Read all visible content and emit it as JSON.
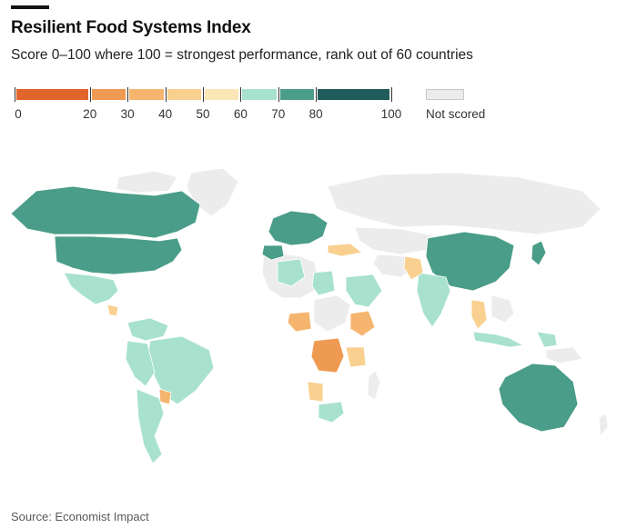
{
  "title": "Resilient Food Systems Index",
  "subtitle": "Score 0–100 where 100 = strongest performance, rank out of 60 countries",
  "source": "Source: Economist Impact",
  "legend": {
    "labels": [
      "0",
      "20",
      "30",
      "40",
      "50",
      "60",
      "70",
      "80",
      "100"
    ],
    "not_scored_label": "Not scored",
    "bins": [
      {
        "range": "0–20",
        "color": "#e0642b"
      },
      {
        "range": "20–30",
        "color": "#ef9a52"
      },
      {
        "range": "30–40",
        "color": "#f5b56e"
      },
      {
        "range": "40–50",
        "color": "#f9d08f"
      },
      {
        "range": "50–60",
        "color": "#fbe6b5"
      },
      {
        "range": "60–70",
        "color": "#a8e2ce"
      },
      {
        "range": "70–80",
        "color": "#4a9d88"
      },
      {
        "range": "80–100",
        "color": "#1f5c5a"
      }
    ],
    "not_scored_color": "#ececec"
  },
  "map": {
    "regions": [
      {
        "id": "canada",
        "bin": "70–80"
      },
      {
        "id": "usa",
        "bin": "70–80"
      },
      {
        "id": "mexico",
        "bin": "60–70"
      },
      {
        "id": "central-america",
        "bin": "40–50"
      },
      {
        "id": "venezuela",
        "bin": "60–70"
      },
      {
        "id": "colombia",
        "bin": "60–70"
      },
      {
        "id": "brazil",
        "bin": "60–70"
      },
      {
        "id": "peru",
        "bin": "60–70"
      },
      {
        "id": "bolivia",
        "bin": "60–70"
      },
      {
        "id": "paraguay",
        "bin": "30–40"
      },
      {
        "id": "argentina",
        "bin": "60–70"
      },
      {
        "id": "chile",
        "bin": "60–70"
      },
      {
        "id": "western-europe",
        "bin": "70–80"
      },
      {
        "id": "spain",
        "bin": "70–80"
      },
      {
        "id": "turkey",
        "bin": "40–50"
      },
      {
        "id": "algeria",
        "bin": "60–70"
      },
      {
        "id": "egypt",
        "bin": "60–70"
      },
      {
        "id": "saudi-arabia",
        "bin": "60–70"
      },
      {
        "id": "pakistan",
        "bin": "40–50"
      },
      {
        "id": "india",
        "bin": "60–70"
      },
      {
        "id": "china",
        "bin": "70–80"
      },
      {
        "id": "japan",
        "bin": "70–80"
      },
      {
        "id": "nigeria",
        "bin": "30–40"
      },
      {
        "id": "ethiopia",
        "bin": "30–40"
      },
      {
        "id": "dr-congo",
        "bin": "20–30"
      },
      {
        "id": "tanzania",
        "bin": "40–50"
      },
      {
        "id": "angola",
        "bin": "40–50"
      },
      {
        "id": "south-africa",
        "bin": "60–70"
      },
      {
        "id": "thailand",
        "bin": "40–50"
      },
      {
        "id": "indonesia",
        "bin": "60–70"
      },
      {
        "id": "australia",
        "bin": "70–80"
      }
    ]
  }
}
